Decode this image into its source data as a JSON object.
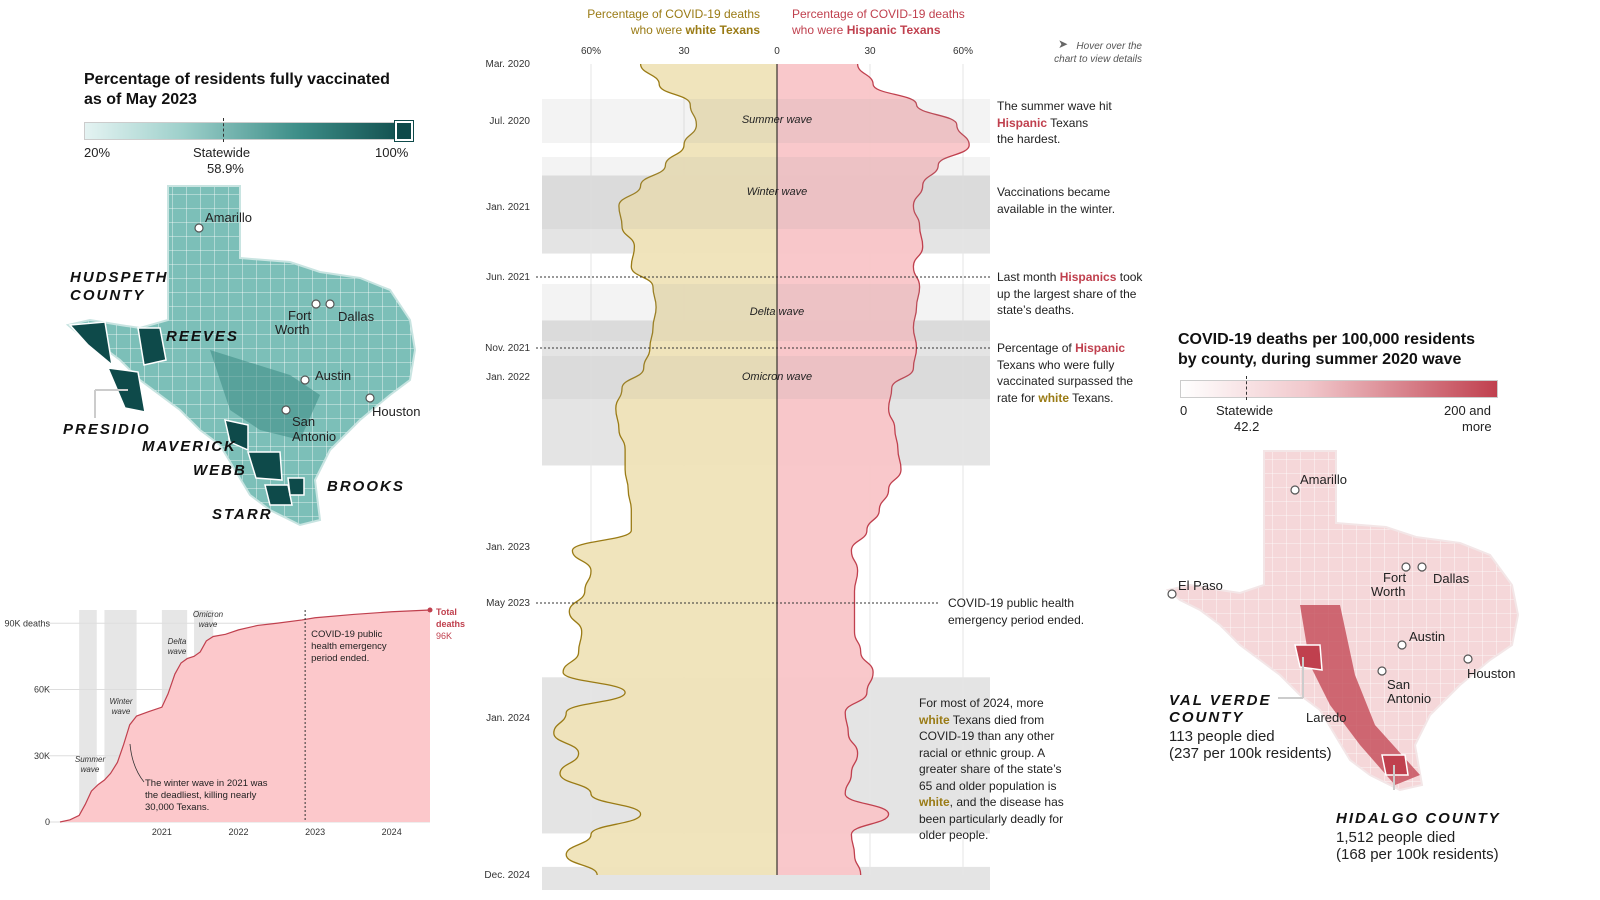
{
  "vax_map": {
    "title_line1": "Percentage of residents fully vaccinated",
    "title_line2": "as of May 2023",
    "legend_min": "20%",
    "legend_max": "100%",
    "legend_statewide": "Statewide",
    "legend_statewide_value": "58.9%",
    "cities": {
      "amarillo": "Amarillo",
      "fort": "Fort",
      "worth": "Worth",
      "dallas": "Dallas",
      "austin": "Austin",
      "san": "San",
      "antonio": "Antonio",
      "houston": "Houston"
    },
    "counties": {
      "hudspeth1": "HUDSPETH",
      "hudspeth2": "COUNTY",
      "reeves": "REEVES",
      "presidio": "PRESIDIO",
      "maverick": "MAVERICK",
      "webb": "WEBB",
      "brooks": "BROOKS",
      "starr": "STARR"
    },
    "colors": {
      "low": "#e4f3f2",
      "high": "#0e4a4a"
    }
  },
  "center": {
    "header_white_line1": "Percentage of COVID-19 deaths",
    "header_white_line2_pre": "who were ",
    "header_white_line2_bold": "white Texans",
    "header_hisp_line1": "Percentage of COVID-19 deaths",
    "header_hisp_line2_pre": "who were ",
    "header_hisp_line2_bold": "Hispanic Texans",
    "hover_line1": "Hover over the",
    "hover_line2": "chart to view details",
    "axis_ticks": [
      "60%",
      "30",
      "0",
      "30",
      "60%"
    ],
    "date_labels": [
      "Mar. 2020",
      "Jul. 2020",
      "Jan. 2021",
      "Jun. 2021",
      "Nov. 2021",
      "Jan. 2022",
      "Jan. 2023",
      "May 2023",
      "Jan. 2024",
      "Dec. 2024"
    ],
    "waves": [
      "Summer wave",
      "Winter wave",
      "Delta wave",
      "Omicron wave"
    ],
    "ann_summer_1": "The summer wave hit",
    "ann_summer_hisp": "Hispanic",
    "ann_summer_2": " Texans",
    "ann_summer_3": "the hardest.",
    "ann_vacc_1": "Vaccinations became",
    "ann_vacc_2": "available in the winter.",
    "ann_jun_1": "Last month ",
    "ann_jun_hisp": "Hispanics",
    "ann_jun_2": " took",
    "ann_jun_3": "up the largest share of the",
    "ann_jun_4": "state’s deaths.",
    "ann_nov_1": "Percentage of ",
    "ann_nov_hisp": "Hispanic",
    "ann_nov_2": "Texans who were fully",
    "ann_nov_3": "vaccinated surpassed the",
    "ann_nov_4": "rate for ",
    "ann_nov_white": "white",
    "ann_nov_5": " Texans.",
    "ann_may_1": "COVID-19 public health",
    "ann_may_2": "emergency period ended.",
    "ann_2024_1": "For most of 2024, more",
    "ann_2024_white": "white",
    "ann_2024_2": " Texans died from",
    "ann_2024_3": "COVID-19 than any other",
    "ann_2024_4": "racial or ethnic group. A",
    "ann_2024_5": "greater share of the state’s",
    "ann_2024_6": "65 and older population is",
    "ann_2024_white2": "white",
    "ann_2024_7": ", and the disease has",
    "ann_2024_8": "been particularly deadly for",
    "ann_2024_9": "older people.",
    "colors": {
      "white_fill": "#efe3b8",
      "white_line": "#9a7b15",
      "hisp_fill": "#f9c5c8",
      "hisp_line": "#c0404e",
      "band": "#e4e4e4"
    }
  },
  "chart_data": [
    {
      "type": "area",
      "title": "",
      "xlabel": "",
      "ylabel": "",
      "y_ticks": [
        "90K deaths",
        "60K",
        "30K",
        "0"
      ],
      "x_ticks": [
        "2021",
        "2022",
        "2023",
        "2024"
      ],
      "ylim": [
        0,
        96000
      ],
      "xlim": [
        2020.17,
        2025.0
      ],
      "series": [
        {
          "name": "Total deaths",
          "x": [
            2020.17,
            2020.3,
            2020.42,
            2020.5,
            2020.58,
            2020.67,
            2020.75,
            2020.83,
            2020.92,
            2021.0,
            2021.08,
            2021.17,
            2021.33,
            2021.5,
            2021.58,
            2021.67,
            2021.75,
            2021.83,
            2021.92,
            2022.0,
            2022.08,
            2022.17,
            2022.33,
            2022.5,
            2022.75,
            2023.0,
            2023.33,
            2023.5,
            2024.0,
            2024.5,
            2025.0
          ],
          "values": [
            0,
            1000,
            3000,
            8000,
            14000,
            17000,
            19000,
            22000,
            27000,
            35000,
            44000,
            48000,
            50000,
            52000,
            58000,
            67000,
            72000,
            74000,
            75000,
            77000,
            82000,
            84000,
            85000,
            87000,
            89000,
            90000,
            91500,
            92500,
            94000,
            95200,
            96000
          ]
        }
      ],
      "bands": [
        {
          "label": "Summer wave",
          "x0": 2020.42,
          "x1": 2020.65
        },
        {
          "label": "Winter wave",
          "x0": 2020.75,
          "x1": 2021.17
        },
        {
          "label": "Delta wave",
          "x0": 2021.5,
          "x1": 2021.83
        },
        {
          "label": "Omicron wave",
          "x0": 2021.92,
          "x1": 2022.17
        }
      ],
      "end_label_1": "Total",
      "end_label_2": "deaths",
      "end_value": "96K",
      "note_line1": "COVID-19 public",
      "note_line2": "health emergency",
      "note_line3": "period ended.",
      "winter_note_1": "The winter wave in 2021 was",
      "winter_note_2": "the deadliest, killing nearly",
      "winter_note_3": "30,000 Texans.",
      "band_labels": {
        "summer1": "Summer",
        "summer2": "wave",
        "winter1": "Winter",
        "winter2": "wave",
        "delta1": "Delta",
        "delta2": "wave",
        "omicron1": "Omicron",
        "omicron2": "wave"
      },
      "colors": {
        "fill": "#fcc8cb",
        "line": "#c0404e",
        "band": "#e6e6e6"
      }
    },
    {
      "type": "area",
      "title": "",
      "xlabel": "",
      "ylabel": "",
      "x_ticks": [
        "60%",
        "30",
        "0",
        "30",
        "60%"
      ],
      "xlim": [
        -60,
        60
      ],
      "series": [
        {
          "name": "white Texans",
          "dates": [
            "Mar. 2020",
            "Apr. 2020",
            "May 2020",
            "Jun. 2020",
            "Jul. 2020",
            "Aug. 2020",
            "Sep. 2020",
            "Oct. 2020",
            "Nov. 2020",
            "Dec. 2020",
            "Jan. 2021",
            "Feb. 2021",
            "Mar. 2021",
            "Apr. 2021",
            "May 2021",
            "Jun. 2021",
            "Jul. 2021",
            "Aug. 2021",
            "Sep. 2021",
            "Oct. 2021",
            "Nov. 2021",
            "Dec. 2021",
            "Jan. 2022",
            "Mar. 2022",
            "May 2022",
            "Jul. 2022",
            "Sep. 2022",
            "Nov. 2022",
            "Jan. 2023",
            "Mar. 2023",
            "May 2023",
            "Jul. 2023",
            "Sep. 2023",
            "Nov. 2023",
            "Jan. 2024",
            "Mar. 2024",
            "May 2024",
            "Jul. 2024",
            "Sep. 2024",
            "Nov. 2024",
            "Dec. 2024"
          ],
          "values": [
            44,
            38,
            28,
            26,
            30,
            36,
            44,
            51,
            50,
            46,
            47,
            40,
            39,
            40,
            41,
            43,
            50,
            52,
            51,
            49,
            49,
            48,
            47,
            47,
            66,
            60,
            62,
            67,
            63,
            64,
            69,
            49,
            68,
            72,
            64,
            70,
            60,
            44,
            60,
            68,
            58
          ]
        },
        {
          "name": "Hispanic Texans",
          "dates": [
            "Mar. 2020",
            "Apr. 2020",
            "May 2020",
            "Jun. 2020",
            "Jul. 2020",
            "Aug. 2020",
            "Sep. 2020",
            "Oct. 2020",
            "Nov. 2020",
            "Dec. 2020",
            "Jan. 2021",
            "Feb. 2021",
            "Mar. 2021",
            "Apr. 2021",
            "May 2021",
            "Jun. 2021",
            "Jul. 2021",
            "Aug. 2021",
            "Sep. 2021",
            "Oct. 2021",
            "Nov. 2021",
            "Dec. 2021",
            "Jan. 2022",
            "Mar. 2022",
            "May 2022",
            "Jul. 2022",
            "Sep. 2022",
            "Nov. 2022",
            "Jan. 2023",
            "Mar. 2023",
            "May 2023",
            "Jul. 2023",
            "Sep. 2023",
            "Nov. 2023",
            "Jan. 2024",
            "Mar. 2024",
            "May 2024",
            "Jul. 2024",
            "Sep. 2024",
            "Nov. 2024",
            "Dec. 2024"
          ],
          "values": [
            26,
            31,
            45,
            58,
            62,
            52,
            47,
            44,
            46,
            47,
            44,
            46,
            45,
            44,
            45,
            44,
            37,
            36,
            38,
            39,
            40,
            36,
            33,
            29,
            24,
            26,
            25,
            25,
            25,
            27,
            31,
            29,
            22,
            23,
            26,
            24,
            22,
            36,
            24,
            25,
            27
          ]
        }
      ]
    }
  ],
  "deaths_map": {
    "title_line1": "COVID-19 deaths per 100,000 residents",
    "title_line2": "by county, during summer 2020 wave",
    "legend_min": "0",
    "legend_statewide": "Statewide",
    "legend_statewide_value": "42.2",
    "legend_max_1": "200 and",
    "legend_max_2": "more",
    "cities": {
      "amarillo": "Amarillo",
      "elpaso": "El Paso",
      "fort": "Fort",
      "worth": "Worth",
      "dallas": "Dallas",
      "austin": "Austin",
      "houston": "Houston",
      "san": "San",
      "antonio": "Antonio",
      "laredo": "Laredo"
    },
    "valverde_1": "VAL VERDE",
    "valverde_2": "COUNTY",
    "valverde_3": "113 people died",
    "valverde_4": "(237 per 100k residents)",
    "hidalgo_1": "HIDALGO COUNTY",
    "hidalgo_2": "1,512 people died",
    "hidalgo_3": "(168 per 100k residents)",
    "colors": {
      "low": "#ffffff",
      "high": "#c0404e"
    }
  }
}
